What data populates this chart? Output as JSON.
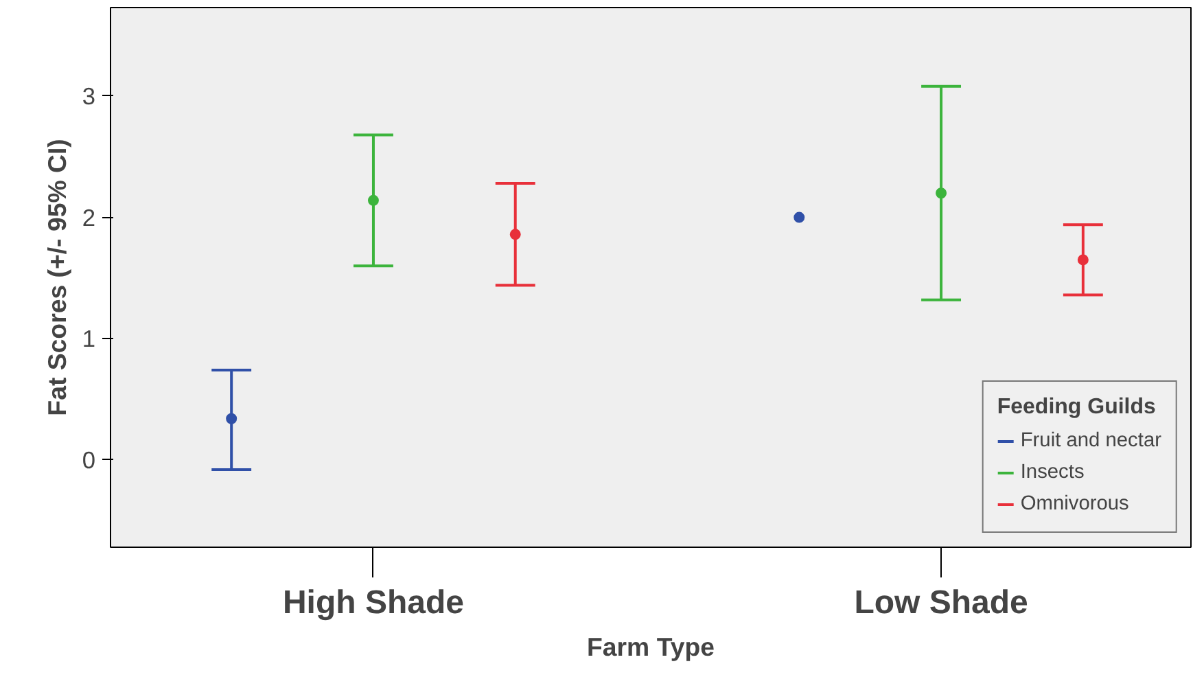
{
  "chart_data": {
    "type": "scatter",
    "xlabel": "Farm Type",
    "ylabel": "Fat Scores (+/- 95% CI)",
    "legend_title": "Feeding Guilds",
    "categories": [
      "High Shade",
      "Low Shade"
    ],
    "series": [
      {
        "name": "Fruit and nectar",
        "color": "#3050a8",
        "values": [
          0.34,
          2.0
        ],
        "errors": [
          [
            -0.08,
            0.74
          ],
          null
        ]
      },
      {
        "name": "Insects",
        "color": "#3cb43c",
        "values": [
          2.14,
          2.2
        ],
        "errors": [
          [
            1.6,
            2.68
          ],
          [
            1.32,
            3.08
          ]
        ]
      },
      {
        "name": "Omnivorous",
        "color": "#e8303a",
        "values": [
          1.86,
          1.65
        ],
        "errors": [
          [
            1.44,
            2.28
          ],
          [
            1.36,
            1.94
          ]
        ]
      }
    ],
    "ylim": [
      -0.72,
      3.73
    ],
    "yticks": [
      0,
      1,
      2,
      3
    ],
    "grid": false,
    "legend": "bottom right",
    "marker": "circle"
  }
}
